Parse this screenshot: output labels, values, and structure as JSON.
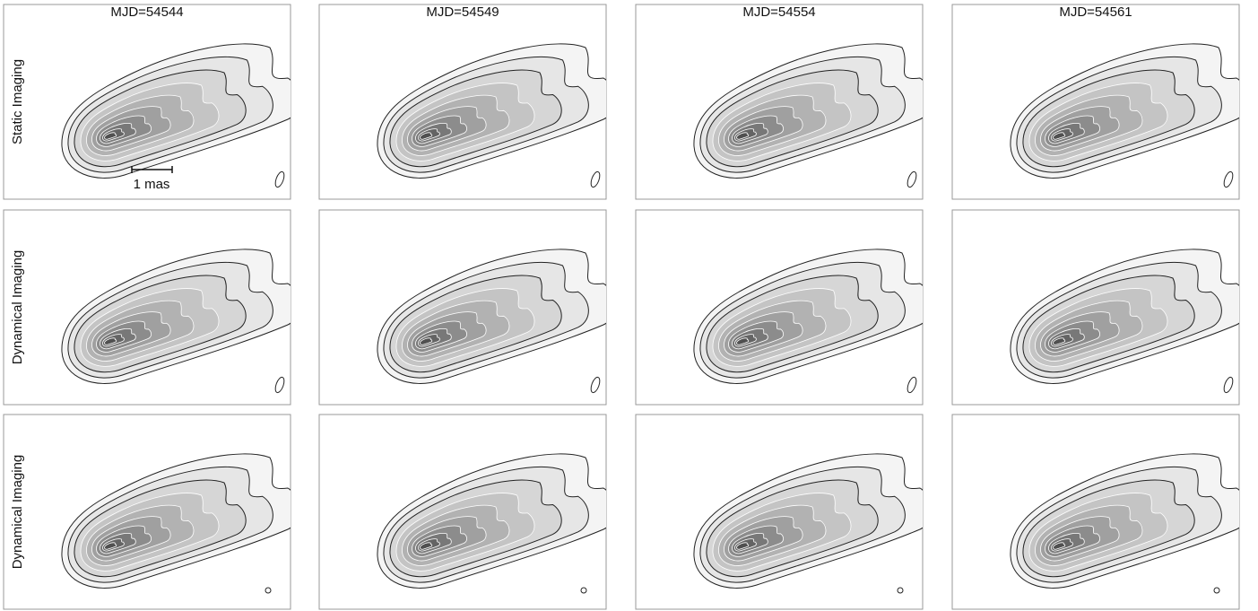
{
  "columns": [
    "MJD=54544",
    "MJD=54549",
    "MJD=54554",
    "MJD=54561"
  ],
  "rows": [
    "Static Imaging",
    "Dynamical Imaging",
    "Dynamical Imaging"
  ],
  "scale_bar": "1 mas"
}
